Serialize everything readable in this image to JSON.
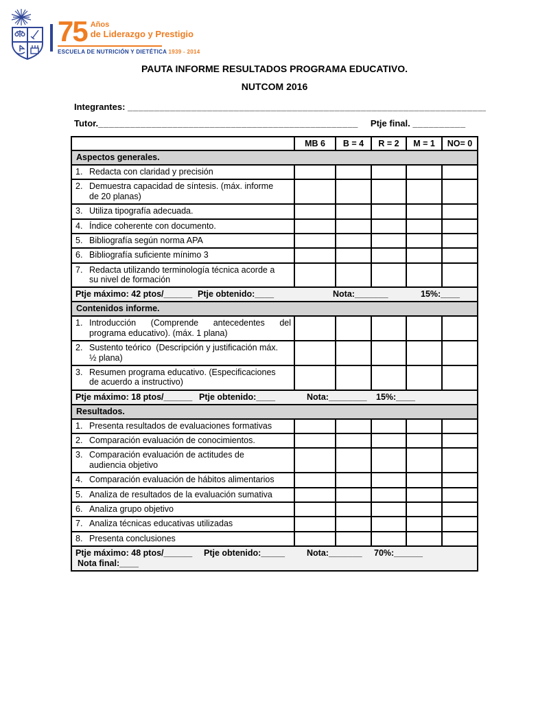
{
  "logo": {
    "number": "75",
    "anos": "Años",
    "tagline": "de Liderazgo y Prestigio",
    "school": "ESCUELA DE NUTRICIÓN Y DIETÉTICA ",
    "years": "1939 - 2014",
    "colors": {
      "blue": "#2e4596",
      "dark_blue": "#1c3f94",
      "orange": "#ee7d22"
    }
  },
  "title": {
    "line1": "PAUTA INFORME RESULTADOS PROGRAMA EDUCATIVO.",
    "line2": "NUTCOM 2016"
  },
  "fields": {
    "integrantes_label": "Integrantes: ",
    "integrantes_line": "_______________________________________________________________________",
    "tutor_label": "Tutor. ",
    "tutor_line": "_________________________________________________",
    "ptje_final_label": "Ptje final. ",
    "ptje_final_line": "__________"
  },
  "table": {
    "colors": {
      "section_header_bg": "#d3d3d3",
      "summary_bg": "#f1f1f1",
      "border": "#000000"
    },
    "score_headers": [
      "MB 6",
      "B = 4",
      "R = 2",
      "M = 1",
      "NO= 0"
    ],
    "sections": [
      {
        "header": "Aspectos generales.",
        "rows": [
          {
            "num": "1.",
            "text": "Redacta con claridad y precisión"
          },
          {
            "num": "2.",
            "text": "Demuestra capacidad de síntesis. (máx. informe\nde 20 planas)"
          },
          {
            "num": "3.",
            "text": "Utiliza tipografía adecuada."
          },
          {
            "num": "4.",
            "text": "Índice coherente con documento."
          },
          {
            "num": "5.",
            "text": "Bibliografía según norma APA"
          },
          {
            "num": "6.",
            "text": "Bibliografía suficiente mínimo 3"
          },
          {
            "num": "7.",
            "text": "Redacta utilizando terminología técnica acorde a\nsu nivel de formación"
          }
        ],
        "summary": {
          "segments": [
            "Ptje máximo: 42 ptos/______",
            "Ptje obtenido:____",
            "Nota:_______",
            "15%:____"
          ]
        }
      },
      {
        "header": "Contenidos informe.",
        "rows": [
          {
            "num": "1.",
            "text": "Introducción (Comprende antecedentes del programa educativo). (máx. 1 plana)",
            "justify": true
          },
          {
            "num": "2.",
            "text": "Sustento teórico  (Descripción y justificación máx.\n½ plana)"
          },
          {
            "num": "3.",
            "text": "Resumen programa educativo. (Especificaciones\nde acuerdo a instructivo)"
          }
        ],
        "summary": {
          "segments": [
            "Ptje máximo: 18 ptos/______",
            "Ptje obtenido:____",
            "Nota:________",
            "15%:____"
          ]
        }
      },
      {
        "header": "Resultados.",
        "rows": [
          {
            "num": "1.",
            "text": "Presenta resultados de evaluaciones formativas"
          },
          {
            "num": "2.",
            "text": "Comparación evaluación de conocimientos."
          },
          {
            "num": "3.",
            "text": "Comparación evaluación de actitudes de\naudiencia objetivo"
          },
          {
            "num": "4.",
            "text": "Comparación evaluación de hábitos alimentarios"
          },
          {
            "num": "5.",
            "text": "Analiza de resultados de la evaluación sumativa"
          },
          {
            "num": "6.",
            "text": "Analiza grupo objetivo"
          },
          {
            "num": "7.",
            "text": "Analiza técnicas educativas utilizadas"
          },
          {
            "num": "8.",
            "text": "Presenta conclusiones"
          }
        ],
        "summary": {
          "segments": [
            "Ptje máximo: 48 ptos/______",
            "Ptje obtenido:_____",
            "Nota:_______",
            "70%:______"
          ],
          "line2": "Nota final:____"
        }
      }
    ]
  }
}
